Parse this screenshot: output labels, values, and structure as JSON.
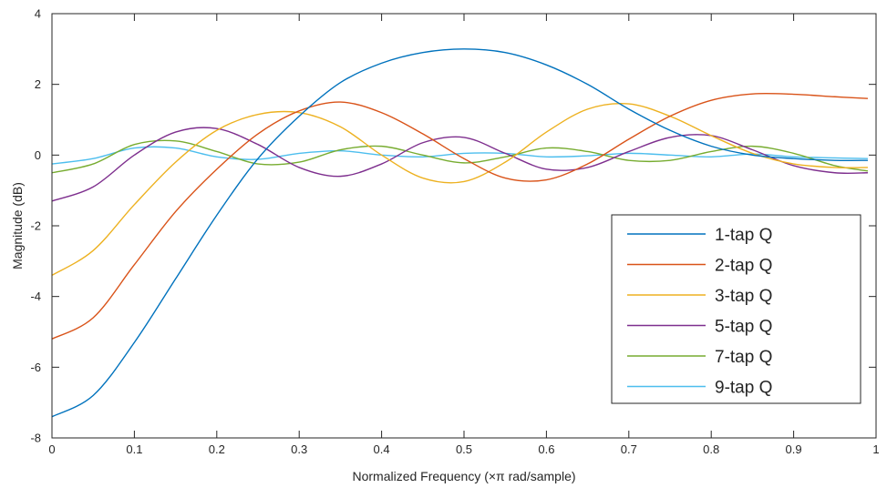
{
  "chart_data": {
    "type": "line",
    "title": "",
    "xlabel": "Normalized Frequency (×π rad/sample)",
    "ylabel": "Magnitude (dB)",
    "xlim": [
      0,
      1
    ],
    "ylim": [
      -8,
      4
    ],
    "xticks": [
      0,
      0.1,
      0.2,
      0.3,
      0.4,
      0.5,
      0.6,
      0.7,
      0.8,
      0.9,
      1
    ],
    "xtick_labels": [
      "0",
      "0.1",
      "0.2",
      "0.3",
      "0.4",
      "0.5",
      "0.6",
      "0.7",
      "0.8",
      "0.9",
      "1"
    ],
    "yticks": [
      -8,
      -6,
      -4,
      -2,
      0,
      2,
      4
    ],
    "ytick_labels": [
      "-8",
      "-6",
      "-4",
      "-2",
      "0",
      "2",
      "4"
    ],
    "grid": false,
    "legend_position": "bottom-right",
    "series": [
      {
        "name": "1-tap Q",
        "color": "#0072BD",
        "x": [
          0,
          0.05,
          0.1,
          0.15,
          0.2,
          0.25,
          0.3,
          0.35,
          0.4,
          0.45,
          0.5,
          0.55,
          0.6,
          0.65,
          0.7,
          0.75,
          0.8,
          0.85,
          0.9,
          0.95,
          0.99
        ],
        "y": [
          -7.4,
          -6.8,
          -5.3,
          -3.5,
          -1.7,
          -0.1,
          1.1,
          2.05,
          2.6,
          2.9,
          3.0,
          2.9,
          2.55,
          2.0,
          1.3,
          0.7,
          0.25,
          0.0,
          -0.1,
          -0.15,
          -0.15
        ]
      },
      {
        "name": "2-tap Q",
        "color": "#D95319",
        "x": [
          0,
          0.05,
          0.1,
          0.15,
          0.2,
          0.25,
          0.3,
          0.35,
          0.4,
          0.45,
          0.5,
          0.55,
          0.6,
          0.65,
          0.7,
          0.75,
          0.8,
          0.85,
          0.9,
          0.95,
          0.99
        ],
        "y": [
          -5.2,
          -4.6,
          -3.1,
          -1.6,
          -0.4,
          0.6,
          1.25,
          1.5,
          1.2,
          0.6,
          -0.1,
          -0.65,
          -0.7,
          -0.25,
          0.45,
          1.1,
          1.55,
          1.73,
          1.72,
          1.65,
          1.6
        ]
      },
      {
        "name": "3-tap Q",
        "color": "#EDB120",
        "x": [
          0,
          0.05,
          0.1,
          0.15,
          0.2,
          0.25,
          0.3,
          0.35,
          0.4,
          0.45,
          0.5,
          0.55,
          0.6,
          0.65,
          0.7,
          0.75,
          0.8,
          0.85,
          0.9,
          0.95,
          0.99
        ],
        "y": [
          -3.4,
          -2.7,
          -1.4,
          -0.2,
          0.7,
          1.15,
          1.2,
          0.8,
          0.0,
          -0.65,
          -0.75,
          -0.2,
          0.65,
          1.3,
          1.45,
          1.1,
          0.55,
          0.05,
          -0.25,
          -0.35,
          -0.35
        ]
      },
      {
        "name": "5-tap Q",
        "color": "#7E2F8E",
        "x": [
          0,
          0.05,
          0.1,
          0.15,
          0.2,
          0.25,
          0.3,
          0.35,
          0.4,
          0.45,
          0.5,
          0.55,
          0.6,
          0.65,
          0.7,
          0.75,
          0.8,
          0.85,
          0.9,
          0.95,
          0.99
        ],
        "y": [
          -1.3,
          -0.9,
          0.0,
          0.65,
          0.75,
          0.3,
          -0.35,
          -0.6,
          -0.25,
          0.35,
          0.5,
          0.05,
          -0.4,
          -0.35,
          0.1,
          0.5,
          0.55,
          0.15,
          -0.3,
          -0.5,
          -0.5
        ]
      },
      {
        "name": "7-tap Q",
        "color": "#77AC30",
        "x": [
          0,
          0.05,
          0.1,
          0.15,
          0.2,
          0.25,
          0.3,
          0.35,
          0.4,
          0.45,
          0.5,
          0.55,
          0.6,
          0.65,
          0.7,
          0.75,
          0.8,
          0.85,
          0.9,
          0.95,
          0.99
        ],
        "y": [
          -0.5,
          -0.25,
          0.3,
          0.4,
          0.1,
          -0.25,
          -0.2,
          0.15,
          0.25,
          0.0,
          -0.22,
          -0.05,
          0.2,
          0.1,
          -0.15,
          -0.15,
          0.1,
          0.25,
          0.05,
          -0.3,
          -0.45
        ]
      },
      {
        "name": "9-tap Q",
        "color": "#4DBEEE",
        "x": [
          0,
          0.05,
          0.1,
          0.15,
          0.2,
          0.25,
          0.3,
          0.35,
          0.4,
          0.45,
          0.5,
          0.55,
          0.6,
          0.65,
          0.7,
          0.75,
          0.8,
          0.85,
          0.9,
          0.95,
          0.99
        ],
        "y": [
          -0.25,
          -0.1,
          0.2,
          0.2,
          -0.05,
          -0.12,
          0.05,
          0.12,
          0.0,
          -0.05,
          0.05,
          0.05,
          -0.05,
          -0.02,
          0.05,
          0.0,
          -0.05,
          0.03,
          -0.05,
          -0.08,
          -0.1
        ]
      }
    ]
  }
}
